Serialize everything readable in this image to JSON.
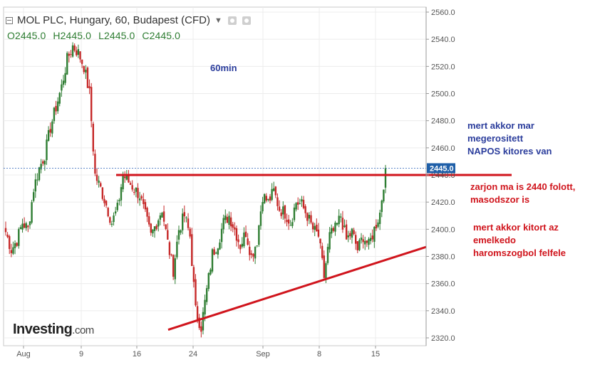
{
  "header": {
    "title": "MOL PLC, Hungary, 60, Budapest (CFD)"
  },
  "ohlc": {
    "open": "O2445.0",
    "high": "H2445.0",
    "low": "L2445.0",
    "close": "C2445.0"
  },
  "current_price_label": "2445.0",
  "logo": {
    "main": "Investing",
    "suffix": ".com"
  },
  "annotations": {
    "timeframe": "60min",
    "blue_note": [
      "mert akkor mar",
      "megerositett",
      "NAPOS kitores van"
    ],
    "red_note_1": [
      "zarjon ma is 2440 folott,",
      "masodszor is"
    ],
    "red_note_2": [
      "mert akkor kitort az",
      "emelkedo",
      "haromszogbol felfele"
    ]
  },
  "colors": {
    "up": "#2e7d32",
    "down": "#c62828",
    "annotation_line": "#d0141c",
    "price_label_bg": "#1f5fa8",
    "annotation_blue": "#2b3d9c"
  },
  "chart_data": {
    "type": "candlestick",
    "title": "MOL PLC, Hungary, 60, Budapest (CFD)",
    "interval": "60",
    "x_tick_labels": [
      "Aug",
      "9",
      "16",
      "24",
      "Sep",
      "8",
      "15"
    ],
    "y_tick_labels": [
      "2320.0",
      "2340.0",
      "2360.0",
      "2380.0",
      "2400.0",
      "2420.0",
      "2440.0",
      "2460.0",
      "2480.0",
      "2500.0",
      "2520.0",
      "2540.0",
      "2560.0"
    ],
    "ylim": [
      2315,
      2565
    ],
    "last_price": 2445.0,
    "grid": true,
    "series": [
      {
        "type": "close_path",
        "points": [
          [
            "Aug",
            2398
          ],
          [
            "Aug",
            2385
          ],
          [
            "Aug",
            2392
          ],
          [
            "Aug",
            2405
          ],
          [
            "Aug",
            2400
          ],
          [
            "Aug",
            2430
          ],
          [
            "Aug",
            2445
          ],
          [
            "Aug",
            2455
          ],
          [
            "Aug",
            2475
          ],
          [
            "Aug",
            2490
          ],
          [
            "Aug",
            2505
          ],
          [
            "Aug",
            2525
          ],
          [
            "Aug",
            2535
          ],
          [
            "Aug",
            2530
          ],
          [
            "9",
            2520
          ],
          [
            "9",
            2500
          ],
          [
            "9",
            2440
          ],
          [
            "9",
            2430
          ],
          [
            "9",
            2418
          ],
          [
            "9",
            2405
          ],
          [
            "9",
            2415
          ],
          [
            "9",
            2440
          ],
          [
            "9",
            2435
          ],
          [
            "9",
            2430
          ],
          [
            "16",
            2425
          ],
          [
            "16",
            2410
          ],
          [
            "16",
            2395
          ],
          [
            "16",
            2405
          ],
          [
            "16",
            2415
          ],
          [
            "16",
            2390
          ],
          [
            "16",
            2370
          ],
          [
            "16",
            2400
          ],
          [
            "16",
            2410
          ],
          [
            "16",
            2395
          ],
          [
            "16",
            2340
          ],
          [
            "16",
            2328
          ],
          [
            "16",
            2355
          ],
          [
            "24",
            2382
          ],
          [
            "24",
            2390
          ],
          [
            "24",
            2405
          ],
          [
            "24",
            2410
          ],
          [
            "24",
            2400
          ],
          [
            "24",
            2388
          ],
          [
            "24",
            2398
          ],
          [
            "24",
            2380
          ],
          [
            "24",
            2392
          ],
          [
            "24",
            2425
          ],
          [
            "Sep",
            2420
          ],
          [
            "Sep",
            2428
          ],
          [
            "Sep",
            2415
          ],
          [
            "Sep",
            2412
          ],
          [
            "Sep",
            2405
          ],
          [
            "Sep",
            2420
          ],
          [
            "Sep",
            2418
          ],
          [
            "Sep",
            2410
          ],
          [
            "Sep",
            2400
          ],
          [
            "8",
            2395
          ],
          [
            "8",
            2365
          ],
          [
            "8",
            2395
          ],
          [
            "8",
            2400
          ],
          [
            "8",
            2410
          ],
          [
            "8",
            2392
          ],
          [
            "8",
            2398
          ],
          [
            "15",
            2385
          ],
          [
            "15",
            2395
          ],
          [
            "15",
            2388
          ],
          [
            "15",
            2400
          ],
          [
            "15",
            2412
          ],
          [
            "15",
            2445
          ]
        ]
      }
    ],
    "annotation_lines": [
      {
        "type": "horizontal",
        "y": 2440,
        "from": "12 Aug",
        "to": "right edge"
      },
      {
        "type": "trendline",
        "from": [
          "20 Aug",
          2326
        ],
        "to": [
          "right edge",
          2387
        ]
      }
    ]
  }
}
